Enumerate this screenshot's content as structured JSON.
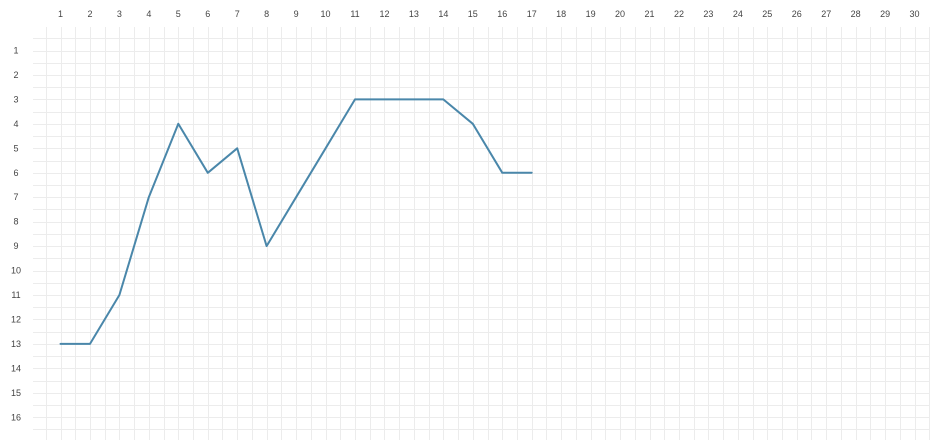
{
  "chart_data": {
    "type": "line",
    "title": "",
    "xlabel": "",
    "ylabel": "",
    "x_ticks": [
      "1",
      "2",
      "3",
      "4",
      "5",
      "6",
      "7",
      "8",
      "9",
      "10",
      "11",
      "12",
      "13",
      "14",
      "15",
      "16",
      "17",
      "18",
      "19",
      "20",
      "21",
      "22",
      "23",
      "24",
      "25",
      "26",
      "27",
      "28",
      "29",
      "30"
    ],
    "y_ticks": [
      "1",
      "2",
      "3",
      "4",
      "5",
      "6",
      "7",
      "8",
      "9",
      "10",
      "11",
      "12",
      "13",
      "14",
      "15",
      "16"
    ],
    "xlim": [
      1,
      30
    ],
    "ylim": [
      1,
      16
    ],
    "y_inverted": true,
    "grid": true,
    "x_axis_position": "top",
    "series": [
      {
        "color": "#4a87aa",
        "x": [
          1,
          2,
          3,
          4,
          5,
          6,
          7,
          8,
          9,
          10,
          11,
          12,
          13,
          14,
          15,
          16,
          17
        ],
        "values": [
          13,
          13,
          11,
          7,
          4,
          6,
          5,
          9,
          7,
          5,
          3,
          3,
          3,
          3,
          4,
          6,
          6
        ]
      }
    ]
  }
}
